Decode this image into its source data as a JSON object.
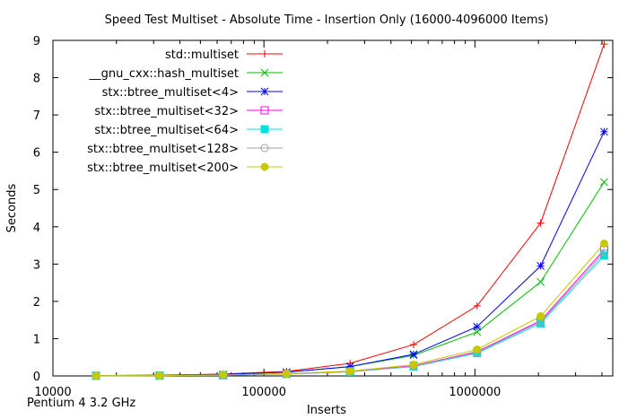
{
  "chart_data": {
    "type": "line",
    "title": "Speed Test Multiset - Absolute Time - Insertion Only (16000-4096000 Items)",
    "xlabel": "Inserts",
    "ylabel": "Seconds",
    "xscale": "log",
    "xlim": [
      10000,
      4500000
    ],
    "ylim": [
      0,
      9
    ],
    "xticks": [
      10000,
      100000,
      1000000
    ],
    "xtick_labels": [
      "10000",
      "100000",
      "1000000"
    ],
    "yticks": [
      0,
      1,
      2,
      3,
      4,
      5,
      6,
      7,
      8,
      9
    ],
    "ytick_labels": [
      "0",
      "1",
      "2",
      "3",
      "4",
      "5",
      "6",
      "7",
      "8",
      "9"
    ],
    "grid": false,
    "legend_position": "top-left",
    "note": "Pentium 4 3.2 GHz",
    "x": [
      16000,
      32000,
      64000,
      128000,
      256000,
      512000,
      1024000,
      2048000,
      4096000
    ],
    "series": [
      {
        "name": "std::multiset",
        "color": "#ff0000",
        "marker": "plus",
        "values": [
          0.01,
          0.02,
          0.05,
          0.12,
          0.34,
          0.84,
          1.88,
          4.1,
          8.9
        ]
      },
      {
        "name": "__gnu_cxx::hash_multiset",
        "color": "#00c000",
        "marker": "cross",
        "values": [
          0.01,
          0.02,
          0.04,
          0.1,
          0.25,
          0.55,
          1.18,
          2.52,
          5.2
        ]
      },
      {
        "name": "stx::btree_multiset<4>",
        "color": "#0000ff",
        "marker": "star",
        "values": [
          0.01,
          0.02,
          0.04,
          0.1,
          0.25,
          0.58,
          1.32,
          2.95,
          6.55
        ]
      },
      {
        "name": "stx::btree_multiset<32>",
        "color": "#ff00ff",
        "marker": "open-square",
        "values": [
          0.005,
          0.01,
          0.02,
          0.06,
          0.12,
          0.27,
          0.65,
          1.48,
          3.38
        ]
      },
      {
        "name": "stx::btree_multiset<64>",
        "color": "#00e0e0",
        "marker": "filled-square",
        "values": [
          0.005,
          0.01,
          0.02,
          0.05,
          0.11,
          0.25,
          0.61,
          1.41,
          3.23
        ]
      },
      {
        "name": "stx::btree_multiset<128>",
        "color": "#a0a0a0",
        "marker": "open-circle",
        "values": [
          0.005,
          0.01,
          0.02,
          0.05,
          0.11,
          0.26,
          0.63,
          1.45,
          3.3
        ]
      },
      {
        "name": "stx::btree_multiset<200>",
        "color": "#c8c800",
        "marker": "filled-circle",
        "values": [
          0.005,
          0.01,
          0.03,
          0.06,
          0.13,
          0.3,
          0.71,
          1.6,
          3.55
        ]
      }
    ]
  }
}
